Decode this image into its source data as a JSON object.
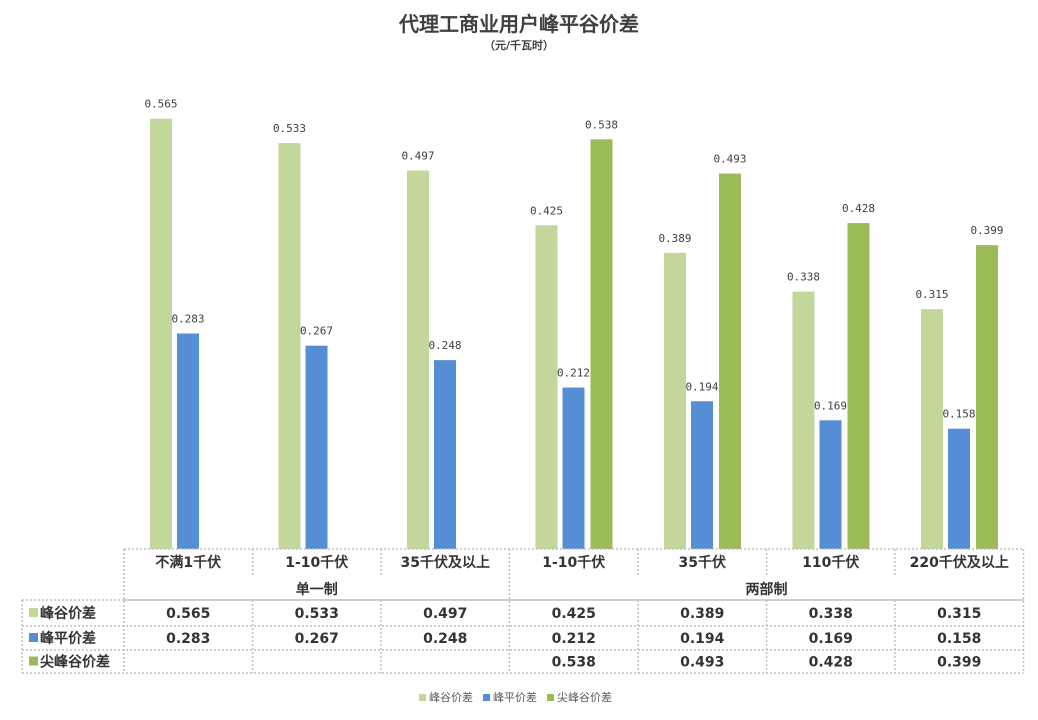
{
  "title": "代理工商业用户峰平谷价差",
  "subtitle": "（元/千瓦时）",
  "chart_data": {
    "type": "bar",
    "title": "代理工商业用户峰平谷价差",
    "subtitle": "（元/千瓦时）",
    "categories": [
      "不满1千伏",
      "1-10千伏",
      "35千伏及以上",
      "1-10千伏",
      "35千伏",
      "110千伏",
      "220千伏及以上"
    ],
    "groups": [
      {
        "label": "单一制",
        "count": 3
      },
      {
        "label": "两部制",
        "count": 4
      }
    ],
    "series": [
      {
        "name": "峰谷价差",
        "color": "#c3d69b",
        "values": [
          0.565,
          0.533,
          0.497,
          0.425,
          0.389,
          0.338,
          0.315
        ]
      },
      {
        "name": "峰平价差",
        "color": "#558ed5",
        "values": [
          0.283,
          0.267,
          0.248,
          0.212,
          0.194,
          0.169,
          0.158
        ]
      },
      {
        "name": "尖峰谷价差",
        "color": "#9bbb59",
        "values": [
          null,
          null,
          null,
          0.538,
          0.493,
          0.428,
          0.399
        ]
      }
    ],
    "ylim": [
      0,
      0.6
    ],
    "grid": false,
    "legend": "bottom",
    "data_table": true
  }
}
